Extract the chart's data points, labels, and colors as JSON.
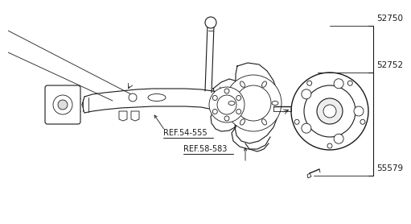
{
  "bg_color": "#ffffff",
  "line_color": "#1a1a1a",
  "label_52750": "52750",
  "label_52752": "52752",
  "label_55579": "55579",
  "label_ref1": "REF.54-555",
  "label_ref2": "REF.58-583",
  "font_size_labels": 7.5,
  "font_size_refs": 7.0
}
